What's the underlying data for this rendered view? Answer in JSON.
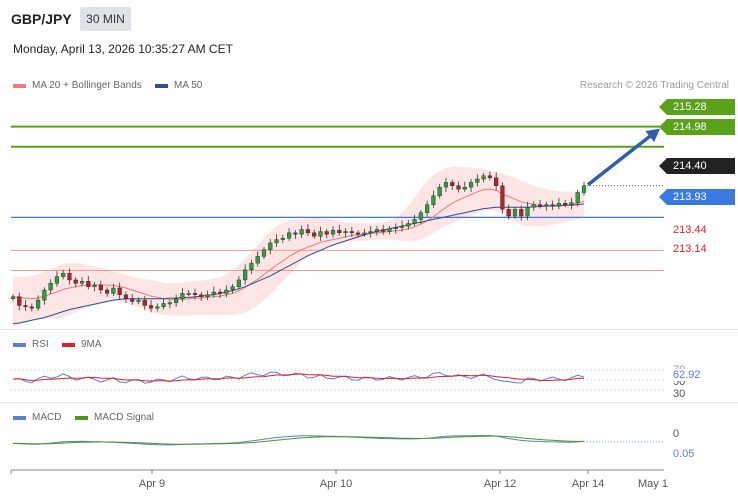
{
  "header": {
    "symbol": "GBP/JPY",
    "timeframe": "30 MIN",
    "datetime": "Monday, April 13, 2026 10:35:27 AM CET"
  },
  "legend": {
    "ma20_label": "MA 20 + Bollinger Bands",
    "ma50_label": "MA 50",
    "credit": "Research © 2026 Trading Central"
  },
  "colors": {
    "ma20": "#f07a7a",
    "bands_fill": "#fde0e0",
    "ma50": "#2f4f8f",
    "resistance": "#5aa21a",
    "pivot": "#3a7ae0",
    "support": "#e0202a",
    "arrow": "#2f5fa8",
    "rsi": "#5b7fd6",
    "rsi_ma": "#e0202a",
    "macd": "#5b7fd6",
    "macd_signal": "#4a9a1a"
  },
  "chart_data": [
    {
      "type": "candlestick",
      "title": "GBP/JPY",
      "x_ticks": [
        "Apr 9",
        "Apr 10",
        "Apr 12",
        "Apr 14",
        "May 1"
      ],
      "ylim": [
        212.3,
        215.75
      ],
      "current_price": "214.40",
      "levels": [
        {
          "value": 215.28,
          "label": "215.28",
          "kind": "resistance"
        },
        {
          "value": 214.98,
          "label": "214.98",
          "kind": "resistance"
        },
        {
          "value": 214.4,
          "label": "214.40",
          "kind": "current"
        },
        {
          "value": 213.93,
          "label": "213.93",
          "kind": "pivot"
        },
        {
          "value": 213.44,
          "label": "213.44",
          "kind": "support"
        },
        {
          "value": 213.14,
          "label": "213.14",
          "kind": "support"
        }
      ],
      "target_arrow": {
        "from": 214.4,
        "to": 215.28
      },
      "close": [
        212.75,
        212.62,
        212.6,
        212.58,
        212.7,
        212.85,
        212.95,
        213.05,
        213.1,
        213.0,
        212.95,
        212.98,
        212.9,
        212.92,
        212.85,
        212.8,
        212.88,
        212.78,
        212.72,
        212.68,
        212.7,
        212.62,
        212.58,
        212.6,
        212.65,
        212.66,
        212.72,
        212.8,
        212.8,
        212.78,
        212.75,
        212.78,
        212.82,
        212.8,
        212.85,
        212.9,
        213.0,
        213.15,
        213.25,
        213.35,
        213.45,
        213.55,
        213.6,
        213.62,
        213.7,
        213.68,
        213.75,
        213.7,
        213.65,
        213.72,
        213.68,
        213.74,
        213.7,
        213.72,
        213.7,
        213.68,
        213.7,
        213.72,
        213.75,
        213.72,
        213.76,
        213.78,
        213.8,
        213.84,
        213.9,
        214.0,
        214.12,
        214.25,
        214.38,
        214.45,
        214.4,
        214.35,
        214.38,
        214.45,
        214.5,
        214.55,
        214.52,
        214.4,
        214.05,
        213.95,
        214.05,
        213.95,
        214.08,
        214.12,
        214.1,
        214.12,
        214.1,
        214.14,
        214.12,
        214.15,
        214.3,
        214.4
      ],
      "ma20": [
        212.75,
        212.74,
        212.73,
        212.72,
        212.73,
        212.76,
        212.79,
        212.82,
        212.86,
        212.88,
        212.9,
        212.92,
        212.92,
        212.93,
        212.93,
        212.92,
        212.92,
        212.9,
        212.88,
        212.85,
        212.82,
        212.79,
        212.76,
        212.74,
        212.72,
        212.71,
        212.71,
        212.71,
        212.72,
        212.73,
        212.73,
        212.74,
        212.75,
        212.76,
        212.78,
        212.8,
        212.84,
        212.89,
        212.95,
        213.01,
        213.08,
        213.15,
        213.22,
        213.28,
        213.35,
        213.4,
        213.45,
        213.49,
        213.52,
        213.56,
        213.58,
        213.6,
        213.62,
        213.64,
        213.66,
        213.67,
        213.68,
        213.69,
        213.7,
        213.71,
        213.72,
        213.73,
        213.74,
        213.76,
        213.79,
        213.83,
        213.88,
        213.94,
        214.01,
        214.08,
        214.14,
        214.19,
        214.23,
        214.27,
        214.31,
        214.34,
        214.35,
        214.33,
        214.28,
        214.24,
        214.2,
        214.16,
        214.14,
        214.12,
        214.11,
        214.1,
        214.1,
        214.11,
        214.11,
        214.12,
        214.14,
        214.17
      ],
      "bb_upper": [
        213.05,
        213.05,
        213.05,
        213.06,
        213.08,
        213.12,
        213.15,
        213.2,
        213.24,
        213.25,
        213.25,
        213.24,
        213.22,
        213.2,
        213.18,
        213.15,
        213.12,
        213.1,
        213.08,
        213.05,
        213.03,
        213.01,
        213.0,
        212.98,
        212.96,
        212.95,
        212.95,
        212.96,
        212.97,
        212.98,
        212.99,
        213.0,
        213.02,
        213.04,
        213.08,
        213.14,
        213.22,
        213.32,
        213.42,
        213.52,
        213.62,
        213.72,
        213.8,
        213.85,
        213.88,
        213.9,
        213.91,
        213.92,
        213.92,
        213.92,
        213.91,
        213.9,
        213.88,
        213.86,
        213.85,
        213.84,
        213.84,
        213.84,
        213.85,
        213.86,
        213.88,
        213.92,
        214.0,
        214.1,
        214.22,
        214.36,
        214.48,
        214.56,
        214.62,
        214.66,
        214.68,
        214.69,
        214.68,
        214.67,
        214.66,
        214.65,
        214.62,
        214.6,
        214.58,
        214.55,
        214.52,
        214.48,
        214.44,
        214.4,
        214.37,
        214.35,
        214.33,
        214.32,
        214.31,
        214.31,
        214.32,
        214.34
      ],
      "bb_lower": [
        212.3,
        212.33,
        212.36,
        212.4,
        212.42,
        212.42,
        212.42,
        212.42,
        212.44,
        212.48,
        212.52,
        212.56,
        212.6,
        212.62,
        212.64,
        212.66,
        212.68,
        212.68,
        212.66,
        212.64,
        212.6,
        212.56,
        212.52,
        212.5,
        212.48,
        212.47,
        212.47,
        212.47,
        212.47,
        212.48,
        212.48,
        212.48,
        212.48,
        212.48,
        212.48,
        212.48,
        212.5,
        212.52,
        212.56,
        212.62,
        212.7,
        212.78,
        212.88,
        212.98,
        213.08,
        213.18,
        213.26,
        213.34,
        213.4,
        213.45,
        213.49,
        213.52,
        213.54,
        213.56,
        213.57,
        213.58,
        213.58,
        213.59,
        213.6,
        213.6,
        213.6,
        213.59,
        213.58,
        213.57,
        213.57,
        213.6,
        213.65,
        213.7,
        213.75,
        213.8,
        213.84,
        213.88,
        213.92,
        213.96,
        214.0,
        214.02,
        214.04,
        214.02,
        213.96,
        213.9,
        213.86,
        213.82,
        213.8,
        213.8,
        213.8,
        213.8,
        213.82,
        213.84,
        213.86,
        213.88,
        213.9,
        213.94
      ],
      "ma50": [
        212.35,
        212.36,
        212.38,
        212.4,
        212.42,
        212.44,
        212.47,
        212.5,
        212.53,
        212.56,
        212.58,
        212.6,
        212.62,
        212.64,
        212.66,
        212.68,
        212.7,
        212.71,
        212.72,
        212.72,
        212.72,
        212.72,
        212.72,
        212.72,
        212.72,
        212.73,
        212.73,
        212.74,
        212.74,
        212.75,
        212.76,
        212.77,
        212.78,
        212.8,
        212.82,
        212.84,
        212.87,
        212.9,
        212.94,
        212.98,
        213.02,
        213.06,
        213.11,
        213.16,
        213.21,
        213.26,
        213.31,
        213.36,
        213.4,
        213.44,
        213.48,
        213.52,
        213.55,
        213.58,
        213.61,
        213.64,
        213.67,
        213.7,
        213.72,
        213.74,
        213.76,
        213.78,
        213.8,
        213.82,
        213.84,
        213.86,
        213.88,
        213.9,
        213.92,
        213.94,
        213.96,
        213.98,
        214.0,
        214.02,
        214.04,
        214.06,
        214.07,
        214.08,
        214.08,
        214.08,
        214.08,
        214.08,
        214.08,
        214.09,
        214.09,
        214.1,
        214.1,
        214.1,
        214.11,
        214.11,
        214.12,
        214.13
      ]
    },
    {
      "type": "line",
      "title": "RSI",
      "series": [
        {
          "name": "RSI"
        },
        {
          "name": "9MA"
        }
      ],
      "levels": [
        "70",
        "50",
        "30"
      ],
      "ylim": [
        20,
        80
      ],
      "current_value": "62.92"
    },
    {
      "type": "line",
      "title": "MACD",
      "series": [
        {
          "name": "MACD"
        },
        {
          "name": "MACD Signal"
        }
      ],
      "levels": [
        "0"
      ],
      "ylim": [
        -0.8,
        0.5
      ],
      "current_value": "0.05"
    }
  ]
}
